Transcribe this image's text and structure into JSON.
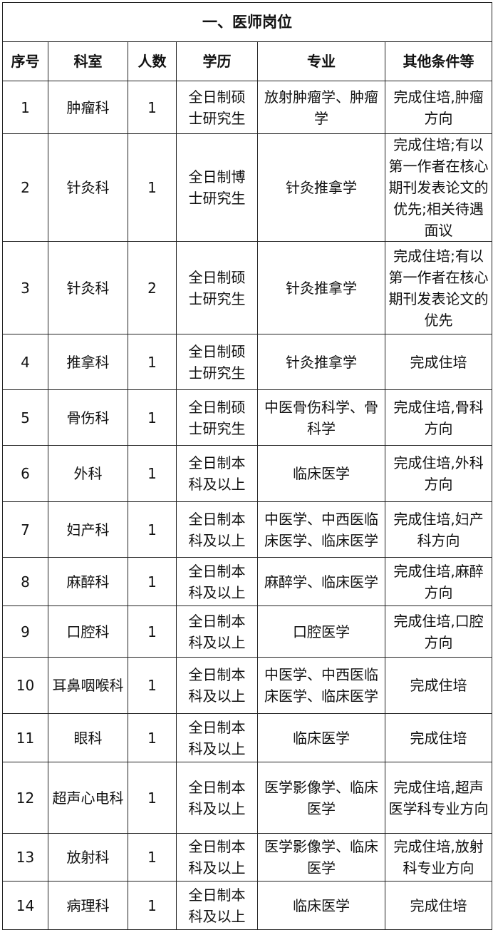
{
  "title": "一、医师岗位",
  "headers": [
    "序号",
    "科室",
    "人数",
    "学历",
    "专业",
    "其他条件等"
  ],
  "rows": [
    {
      "no": "1",
      "dept": "肿瘤科",
      "count": "1",
      "edu": "全日制硕士研究生",
      "major": "放射肿瘤学、肿瘤学",
      "other": "完成住培,肿瘤方向"
    },
    {
      "no": "2",
      "dept": "针灸科",
      "count": "1",
      "edu": "全日制博士研究生",
      "major": "针灸推拿学",
      "other": "完成住培;有以第一作者在核心期刊发表论文的优先;相关待遇面议"
    },
    {
      "no": "3",
      "dept": "针灸科",
      "count": "2",
      "edu": "全日制硕士研究生",
      "major": "针灸推拿学",
      "other": "完成住培;有以第一作者在核心期刊发表论文的优先"
    },
    {
      "no": "4",
      "dept": "推拿科",
      "count": "1",
      "edu": "全日制硕士研究生",
      "major": "针灸推拿学",
      "other": "完成住培"
    },
    {
      "no": "5",
      "dept": "骨伤科",
      "count": "1",
      "edu": "全日制硕士研究生",
      "major": "中医骨伤科学、骨科学",
      "other": "完成住培,骨科方向"
    },
    {
      "no": "6",
      "dept": "外科",
      "count": "1",
      "edu": "全日制本科及以上",
      "major": "临床医学",
      "other": "完成住培,外科方向"
    },
    {
      "no": "7",
      "dept": "妇产科",
      "count": "1",
      "edu": "全日制本科及以上",
      "major": "中医学、中西医临床医学、临床医学",
      "other": "完成住培,妇产科方向"
    },
    {
      "no": "8",
      "dept": "麻醉科",
      "count": "1",
      "edu": "全日制本科及以上",
      "major": "麻醉学、临床医学",
      "other": "完成住培,麻醉方向"
    },
    {
      "no": "9",
      "dept": "口腔科",
      "count": "1",
      "edu": "全日制本科及以上",
      "major": "口腔医学",
      "other": "完成住培,口腔方向"
    },
    {
      "no": "10",
      "dept": "耳鼻咽喉科",
      "count": "1",
      "edu": "全日制本科及以上",
      "major": "中医学、中西医临床医学、临床医学",
      "other": "完成住培"
    },
    {
      "no": "11",
      "dept": "眼科",
      "count": "1",
      "edu": "全日制本科及以上",
      "major": "临床医学",
      "other": "完成住培"
    },
    {
      "no": "12",
      "dept": "超声心电科",
      "count": "1",
      "edu": "全日制本科及以上",
      "major": "医学影像学、临床医学",
      "other": "完成住培,超声医学科专业方向"
    },
    {
      "no": "13",
      "dept": "放射科",
      "count": "1",
      "edu": "全日制本科及以上",
      "major": "医学影像学、临床医学",
      "other": "完成住培,放射科专业方向"
    },
    {
      "no": "14",
      "dept": "病理科",
      "count": "1",
      "edu": "全日制本科及以上",
      "major": "临床医学",
      "other": "完成住培"
    }
  ]
}
